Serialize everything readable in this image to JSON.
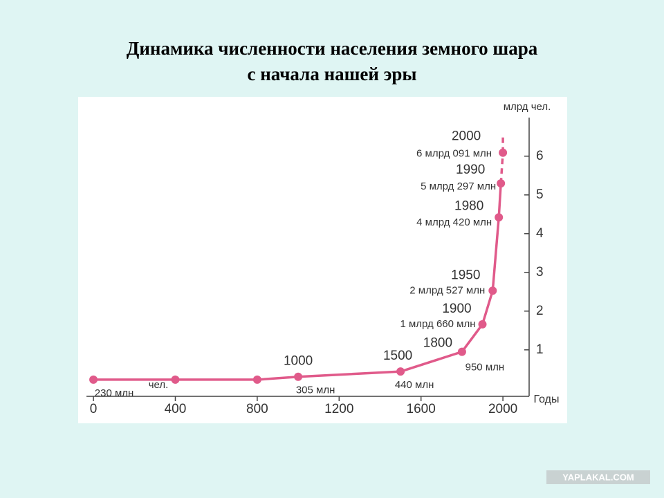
{
  "chart_data": {
    "type": "line",
    "title": "Динамика численности населения земного шара",
    "subtitle": "с начала нашей эры",
    "y_label": "млрд чел.",
    "x_label": "Годы",
    "unit_note": "чел.",
    "x": [
      0,
      400,
      800,
      1000,
      1500,
      1800,
      1900,
      1950,
      1980,
      1990,
      2000
    ],
    "values": [
      0.23,
      0.23,
      0.23,
      0.305,
      0.44,
      0.95,
      1.66,
      2.527,
      4.42,
      5.297,
      6.091
    ],
    "value_labels": [
      "230 млн",
      null,
      null,
      "305 млн",
      "440 млн",
      "950 млн",
      "1 млрд 660 млн",
      "2 млрд 527 млн",
      "4 млрд 420 млн",
      "5 млрд 297 млн",
      "6 млрд 091 млн"
    ],
    "color": "#e05a8a",
    "xlim": [
      -34,
      2128
    ],
    "ylim": [
      -0.2,
      7.2
    ],
    "xticks": [
      0,
      400,
      800,
      1200,
      1600,
      2000
    ],
    "yticks": [
      1,
      2,
      3,
      4,
      5,
      6
    ]
  },
  "watermark": "YAPLAKAL.COM"
}
